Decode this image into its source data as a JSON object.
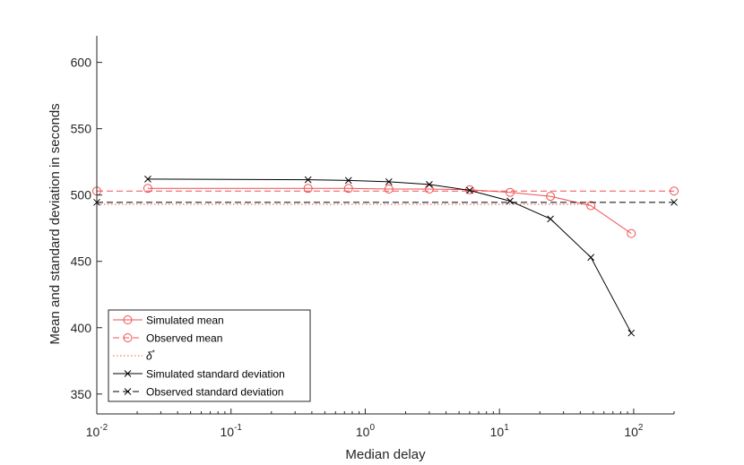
{
  "chart_data": {
    "type": "line",
    "xlabel": "Median delay",
    "ylabel": "Mean and standard deviation in seconds",
    "xscale": "log",
    "xlim": [
      0.01,
      200
    ],
    "ylim": [
      335,
      620
    ],
    "grid": false,
    "legend_position": "bottom-left",
    "y_ticks": [
      {
        "value": 350,
        "label": "350"
      },
      {
        "value": 400,
        "label": "400"
      },
      {
        "value": 450,
        "label": "450"
      },
      {
        "value": 500,
        "label": "500"
      },
      {
        "value": 550,
        "label": "550"
      },
      {
        "value": 600,
        "label": "600"
      }
    ],
    "x_ticks": [
      {
        "value": 0.01,
        "base": "10",
        "exp": "-2"
      },
      {
        "value": 0.1,
        "base": "10",
        "exp": "-1"
      },
      {
        "value": 1,
        "base": "10",
        "exp": "0"
      },
      {
        "value": 10,
        "base": "10",
        "exp": "1"
      },
      {
        "value": 100,
        "base": "10",
        "exp": "2"
      }
    ],
    "series": [
      {
        "name": "Simulated mean",
        "color": "#f05050",
        "line": "solid",
        "marker": "circle",
        "x": [
          0.024,
          0.375,
          0.75,
          1.5,
          3,
          6,
          12,
          24,
          48,
          96
        ],
        "y": [
          505,
          505,
          505,
          504.5,
          504.5,
          504,
          502,
          499,
          492,
          471
        ]
      },
      {
        "name": "Observed mean",
        "color": "#f05050",
        "line": "dashed",
        "marker": "circle",
        "x": [
          0.01,
          200
        ],
        "y": [
          503,
          503
        ]
      },
      {
        "name": "δ*",
        "color": "#f05050",
        "line": "dotted",
        "marker": "none",
        "x": [
          0.01,
          48
        ],
        "y": [
          493,
          493
        ]
      },
      {
        "name": "Simulated standard deviation",
        "color": "#000000",
        "line": "solid",
        "marker": "x",
        "x": [
          0.024,
          0.375,
          0.75,
          1.5,
          3,
          6,
          12,
          24,
          48,
          96
        ],
        "y": [
          512,
          511.5,
          511,
          510,
          508,
          503.5,
          495.5,
          482,
          453,
          396
        ]
      },
      {
        "name": "Observed standard deviation",
        "color": "#000000",
        "line": "dashed",
        "marker": "x",
        "x": [
          0.01,
          200
        ],
        "y": [
          494.5,
          494.5
        ]
      }
    ]
  }
}
